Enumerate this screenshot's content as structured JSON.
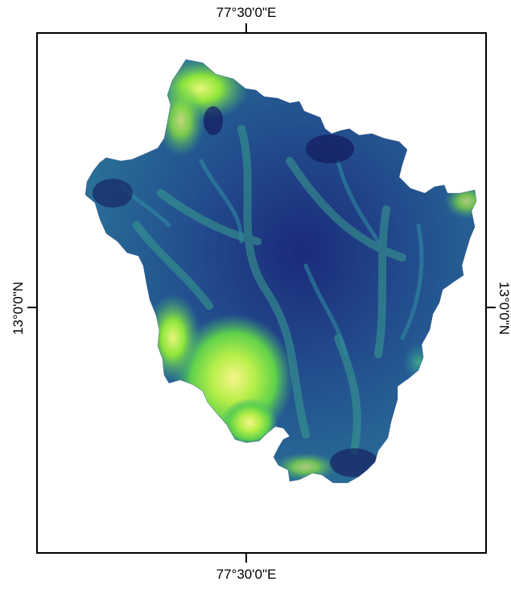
{
  "map": {
    "graticule": {
      "longitude_label_top": "77°30'0\"E",
      "longitude_label_bottom": "77°30'0\"E",
      "latitude_label_left": "13°0'0\"N",
      "latitude_label_right": "13°0'0\"N"
    },
    "elevation_colors": {
      "lowest": "#1a1a6e",
      "low": "#234c8f",
      "mid": "#2a7e9c",
      "high": "#3fb37a",
      "higher": "#7fe03c",
      "highest": "#f5f58a"
    },
    "frame_color": "#000000"
  }
}
